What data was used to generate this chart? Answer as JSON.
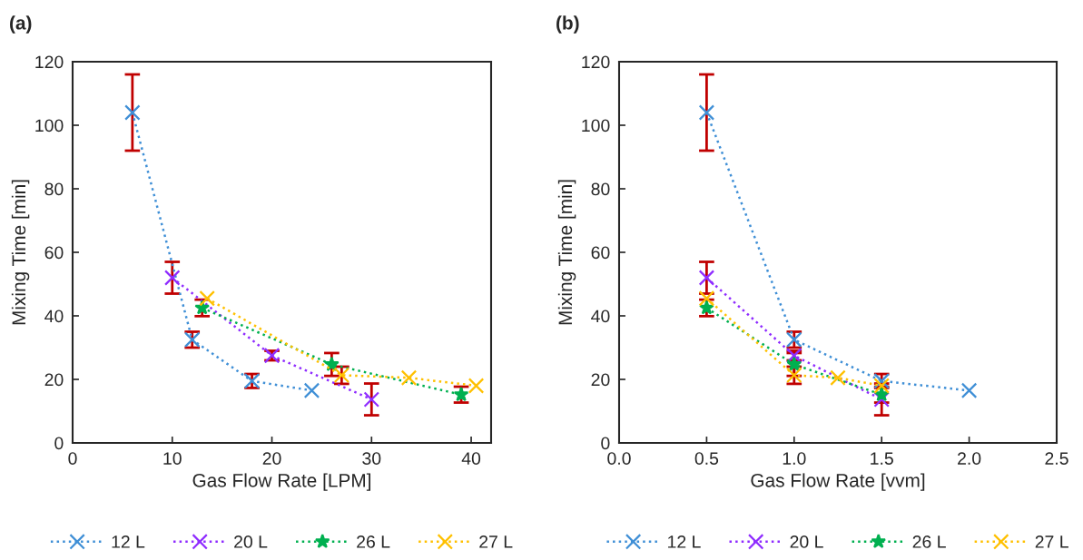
{
  "chart_data": [
    {
      "type": "line",
      "title": "(a)",
      "xlabel": "Gas Flow Rate [LPM]",
      "ylabel": "Mixing Time [min]",
      "xlim": [
        0,
        42
      ],
      "xticks": [
        0,
        10,
        20,
        30,
        40
      ],
      "ylim": [
        0,
        120
      ],
      "yticks": [
        0,
        20,
        40,
        60,
        80,
        100,
        120
      ],
      "grid": false,
      "legend": "bottom",
      "line_style": "dotted",
      "series": [
        {
          "name": "12 L",
          "color": "#3f8fd6",
          "marker": "cross",
          "x": [
            6,
            12,
            18,
            24
          ],
          "values": [
            104,
            32.5,
            19.5,
            16.5
          ],
          "errors": [
            12,
            2.5,
            2.2,
            null
          ]
        },
        {
          "name": "20 L",
          "color": "#8f2cff",
          "marker": "cross",
          "x": [
            10,
            20,
            30
          ],
          "values": [
            52,
            27.5,
            13.7
          ],
          "errors": [
            5,
            1.5,
            5
          ]
        },
        {
          "name": "26 L",
          "color": "#00b050",
          "marker": "star",
          "x": [
            13,
            26,
            39
          ],
          "values": [
            42.5,
            24.7,
            15.2
          ],
          "errors": [
            2.6,
            3.6,
            2.5
          ]
        },
        {
          "name": "27 L",
          "color": "#ffc000",
          "marker": "cross",
          "x": [
            13.5,
            27,
            33.75,
            40.5
          ],
          "values": [
            45.5,
            21.3,
            20.5,
            18
          ],
          "errors": [
            null,
            2.7,
            null,
            null
          ]
        }
      ]
    },
    {
      "type": "line",
      "title": "(b)",
      "xlabel": "Gas Flow Rate [vvm]",
      "ylabel": "Mixing Time [min]",
      "xlim": [
        0,
        2.5
      ],
      "xticks": [
        {
          "value": 0,
          "label": "0.0"
        },
        {
          "value": 0.5,
          "label": "0.5"
        },
        {
          "value": 1,
          "label": "1.0"
        },
        {
          "value": 1.5,
          "label": "1.5"
        },
        {
          "value": 2,
          "label": "2.0"
        },
        {
          "value": 2.5,
          "label": "2.5"
        }
      ],
      "ylim": [
        0,
        120
      ],
      "yticks": [
        0,
        20,
        40,
        60,
        80,
        100,
        120
      ],
      "grid": false,
      "legend": "bottom",
      "line_style": "dotted",
      "series": [
        {
          "name": "12 L",
          "color": "#3f8fd6",
          "marker": "cross",
          "x": [
            0.5,
            1,
            1.5,
            2
          ],
          "values": [
            104,
            32.5,
            19.5,
            16.5
          ],
          "errors": [
            12,
            2.5,
            2.2,
            null
          ]
        },
        {
          "name": "20 L",
          "color": "#8f2cff",
          "marker": "cross",
          "x": [
            0.5,
            1,
            1.5
          ],
          "values": [
            52,
            27.5,
            13.7
          ],
          "errors": [
            5,
            1.5,
            5
          ]
        },
        {
          "name": "26 L",
          "color": "#00b050",
          "marker": "star",
          "x": [
            0.5,
            1,
            1.5
          ],
          "values": [
            42.5,
            24.7,
            15.2
          ],
          "errors": [
            2.6,
            3.6,
            2.5
          ]
        },
        {
          "name": "27 L",
          "color": "#ffc000",
          "marker": "cross",
          "x": [
            0.5,
            1,
            1.25,
            1.5
          ],
          "values": [
            45.5,
            21.3,
            20.5,
            18
          ],
          "errors": [
            null,
            2.7,
            null,
            null
          ]
        }
      ]
    }
  ]
}
